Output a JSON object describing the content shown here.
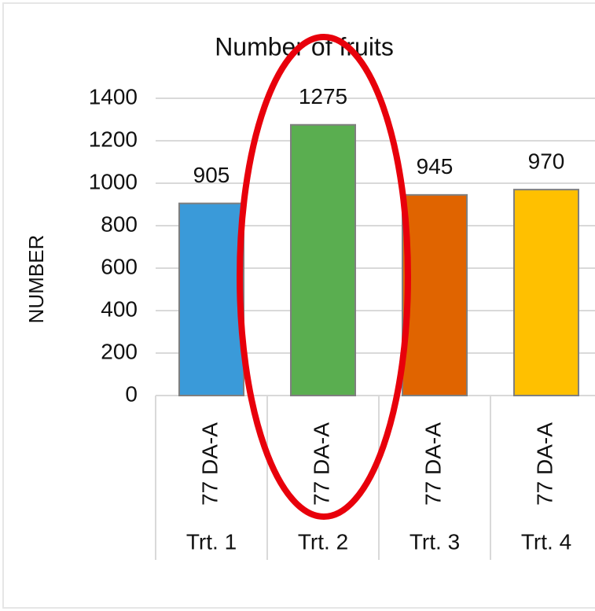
{
  "chart_data": {
    "type": "bar",
    "title": "Number of fruits",
    "y_label": "NUMBER",
    "categories": [
      "Trt. 1",
      "Trt. 2",
      "Trt. 3",
      "Trt. 4"
    ],
    "subcategories": [
      "77 DA-A",
      "77 DA-A",
      "77 DA-A",
      "77 DA-A"
    ],
    "values": [
      905,
      1275,
      945,
      970
    ],
    "colors": [
      "#3a9ad9",
      "#5aae50",
      "#e06400",
      "#ffc000"
    ],
    "ylim": [
      0,
      1400
    ],
    "yticks": [
      0,
      200,
      400,
      600,
      800,
      1000,
      1200,
      1400
    ],
    "grid": true
  }
}
